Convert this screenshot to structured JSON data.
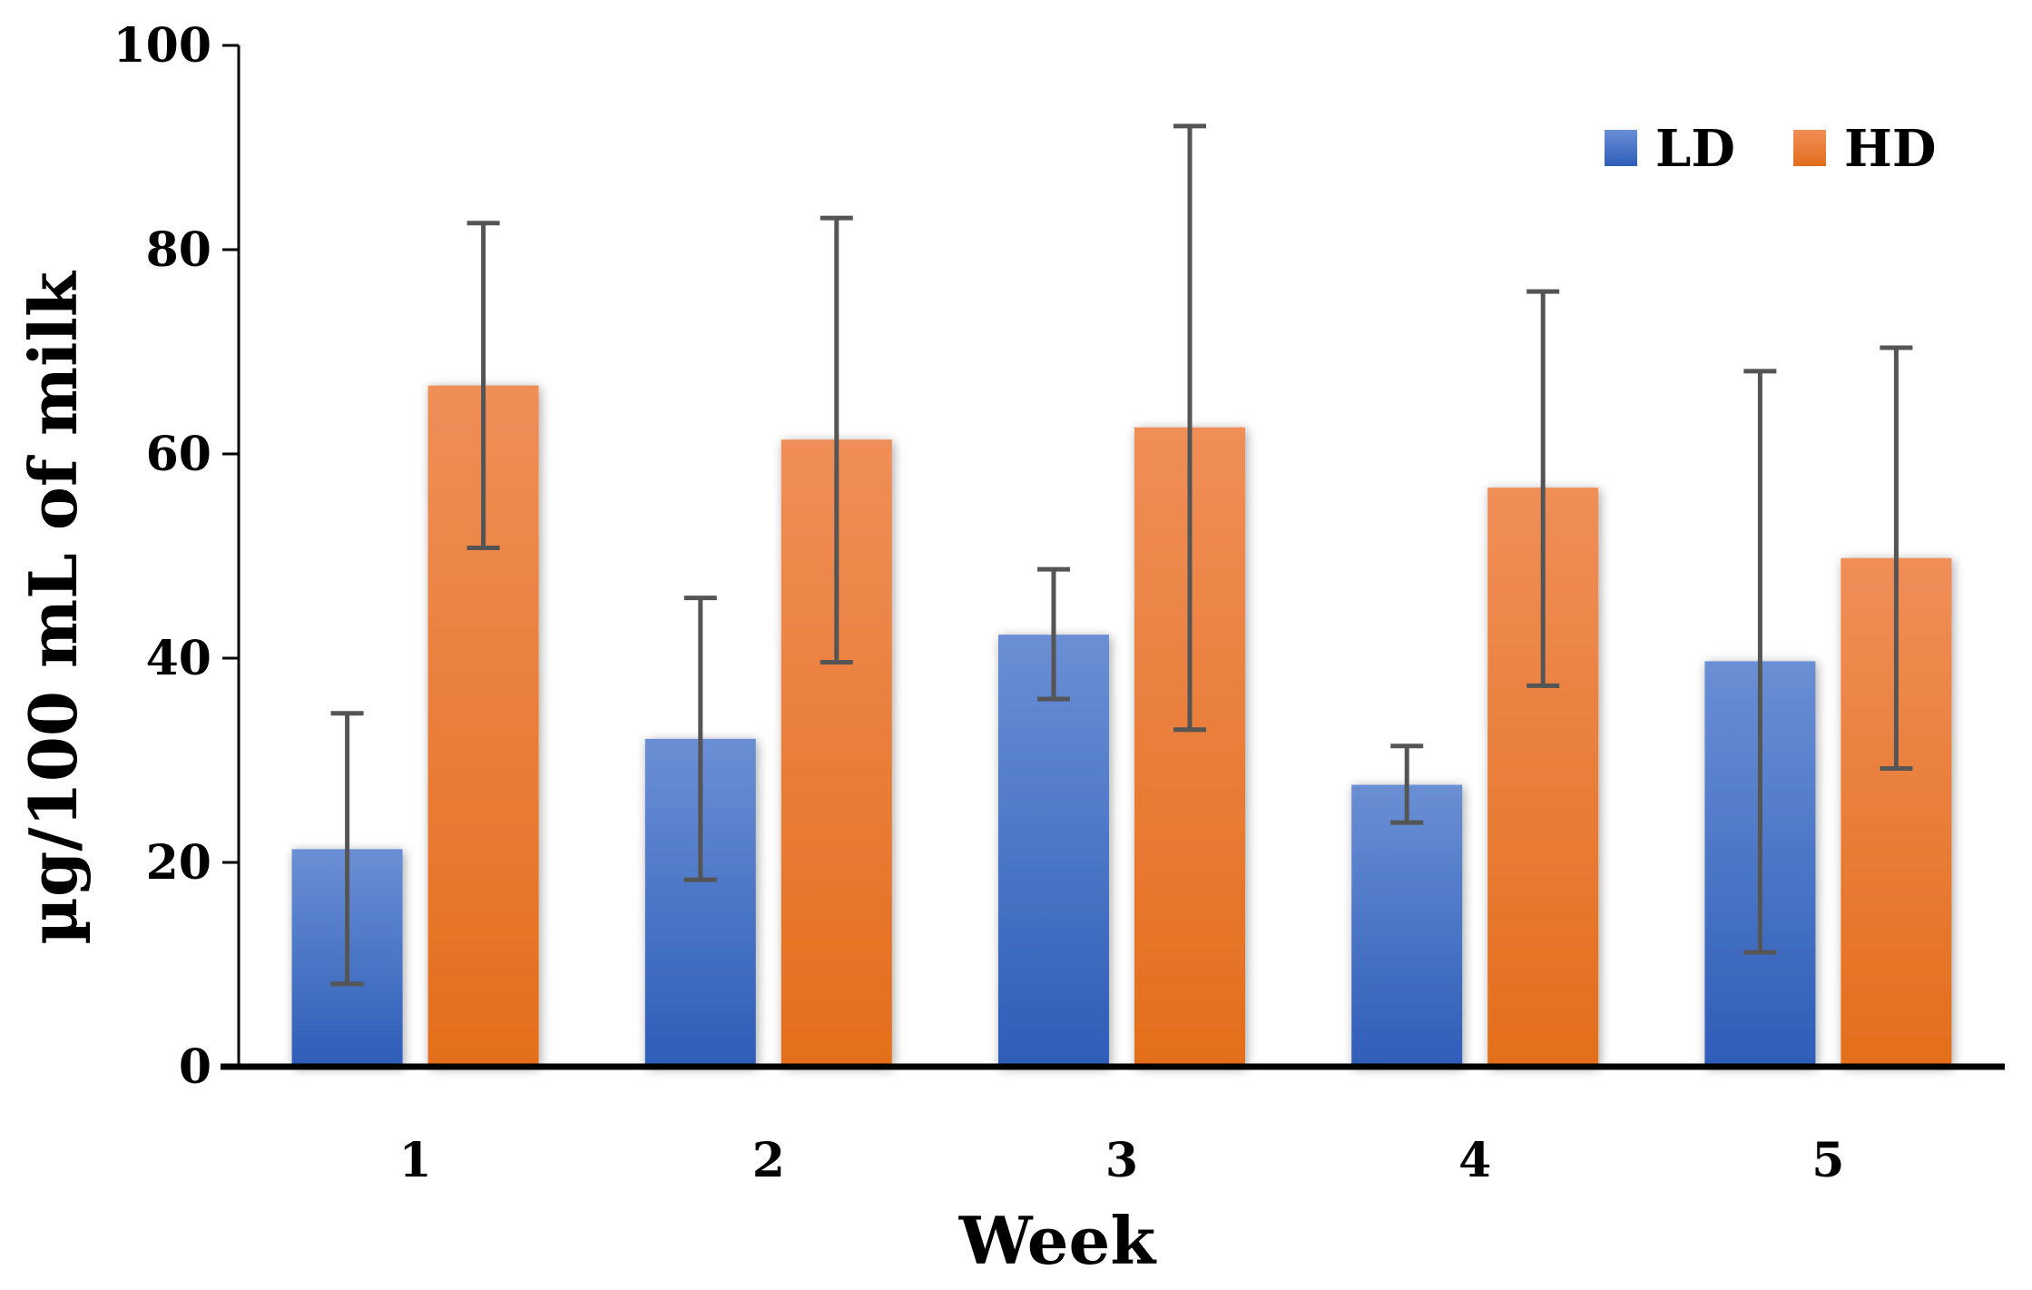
{
  "chart_data": {
    "type": "bar",
    "title": "",
    "xlabel": "Week",
    "ylabel": "µg/100 mL of milk",
    "categories": [
      "1",
      "2",
      "3",
      "4",
      "5"
    ],
    "ylim": [
      0,
      100
    ],
    "yticks": [
      "0",
      "20",
      "40",
      "60",
      "80",
      "100"
    ],
    "grid": false,
    "legend_position": "top-right",
    "series": [
      {
        "name": "LD",
        "color": "#4472C4",
        "values": [
          21.3,
          32.1,
          42.3,
          27.6,
          39.7
        ],
        "error_low": [
          8.1,
          18.3,
          36.0,
          23.9,
          11.2
        ],
        "error_high": [
          34.6,
          45.9,
          48.7,
          31.4,
          68.1
        ]
      },
      {
        "name": "HD",
        "color": "#ED7D31",
        "values": [
          66.7,
          61.4,
          62.6,
          56.7,
          49.8
        ],
        "error_low": [
          50.8,
          39.6,
          33.0,
          37.3,
          29.2
        ],
        "error_high": [
          82.6,
          83.1,
          92.1,
          75.9,
          70.4
        ]
      }
    ]
  }
}
